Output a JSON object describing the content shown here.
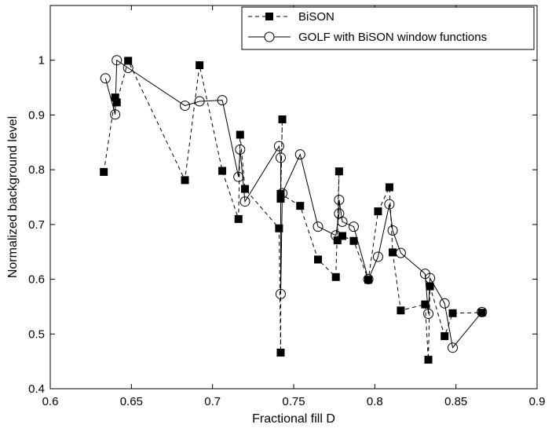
{
  "chart_data": {
    "type": "line",
    "xlabel": "Fractional fill D",
    "ylabel": "Normalized background level",
    "xlim": [
      0.6,
      0.9
    ],
    "ylim": [
      0.4,
      1.1
    ],
    "xticks": [
      0.6,
      0.65,
      0.7,
      0.75,
      0.8,
      0.85,
      0.9
    ],
    "yticks": [
      0.4,
      0.5,
      0.6,
      0.7,
      0.8,
      0.9,
      1.0
    ],
    "xtick_labels": [
      "0.6",
      "0.65",
      "0.7",
      "0.75",
      "0.8",
      "0.85",
      "0.9"
    ],
    "ytick_labels": [
      "0.4",
      "0.5",
      "0.6",
      "0.7",
      "0.8",
      "0.9",
      "1"
    ],
    "grid": false,
    "legend_position": "top-right",
    "series": [
      {
        "name": "BiSON",
        "marker": "square",
        "line_style": "dashed",
        "color": "#000000",
        "x": [
          0.633,
          0.64,
          0.641,
          0.648,
          0.683,
          0.692,
          0.706,
          0.716,
          0.717,
          0.72,
          0.741,
          0.742,
          0.742,
          0.743,
          0.742,
          0.754,
          0.765,
          0.776,
          0.778,
          0.777,
          0.78,
          0.787,
          0.796,
          0.802,
          0.809,
          0.811,
          0.816,
          0.831,
          0.833,
          0.834,
          0.843,
          0.848,
          0.866
        ],
        "y": [
          0.796,
          0.932,
          0.923,
          0.999,
          0.781,
          0.991,
          0.798,
          0.71,
          0.864,
          0.765,
          0.693,
          0.466,
          0.747,
          0.892,
          0.756,
          0.734,
          0.636,
          0.604,
          0.797,
          0.671,
          0.679,
          0.67,
          0.599,
          0.724,
          0.768,
          0.649,
          0.543,
          0.554,
          0.453,
          0.587,
          0.496,
          0.538,
          0.539
        ]
      },
      {
        "name": "GOLF with BiSON window functions",
        "marker": "open-circle",
        "line_style": "solid",
        "color": "#000000",
        "x": [
          0.634,
          0.64,
          0.641,
          0.648,
          0.683,
          0.692,
          0.706,
          0.716,
          0.717,
          0.72,
          0.741,
          0.742,
          0.742,
          0.743,
          0.754,
          0.765,
          0.776,
          0.778,
          0.778,
          0.78,
          0.787,
          0.796,
          0.802,
          0.809,
          0.811,
          0.816,
          0.831,
          0.833,
          0.834,
          0.843,
          0.848,
          0.866
        ],
        "y": [
          0.967,
          0.901,
          1.0,
          0.986,
          0.917,
          0.925,
          0.927,
          0.787,
          0.837,
          0.742,
          0.843,
          0.822,
          0.573,
          0.757,
          0.828,
          0.696,
          0.68,
          0.72,
          0.745,
          0.705,
          0.696,
          0.6,
          0.641,
          0.737,
          0.689,
          0.648,
          0.61,
          0.537,
          0.602,
          0.556,
          0.475,
          0.54
        ]
      }
    ]
  }
}
